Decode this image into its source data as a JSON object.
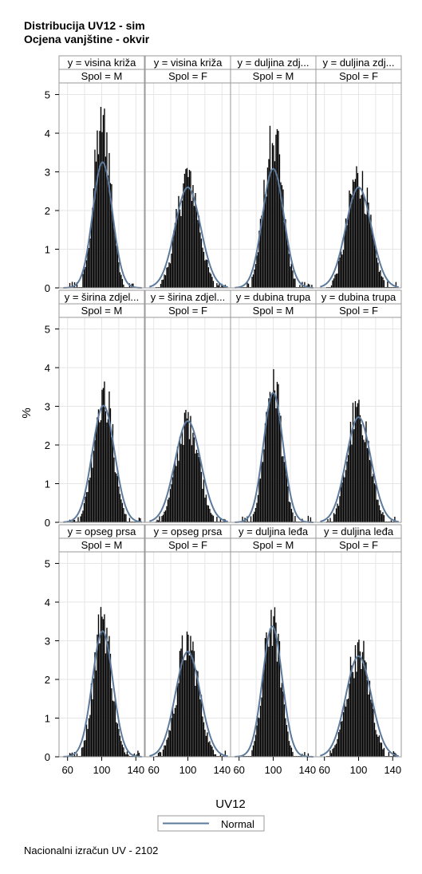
{
  "chart_data": {
    "type": "histogram-panel",
    "title": "Distribucija UV12 - sim",
    "subtitle": "Ocjena vanjštine - okvir",
    "footnote": "Nacionalni izračun UV - 2102",
    "xlabel": "UV12",
    "ylabel": "%",
    "xlim": [
      50,
      150
    ],
    "ylim": [
      0,
      5.3
    ],
    "x_ticks": [
      "60",
      "100",
      "140"
    ],
    "y_ticks": [
      "0",
      "1",
      "2",
      "3",
      "4",
      "5"
    ],
    "grid": true,
    "legend": {
      "position": "bottom",
      "entries": [
        "Normal"
      ]
    },
    "colors": {
      "bars": "#000000",
      "normal_curve": "#5b7a9c",
      "grid": "#e6e6e6",
      "header_bg": "#ffffff",
      "frame": "#9a9a9a"
    },
    "panels": [
      {
        "y": "y = visina križa",
        "spol": "Spol = M",
        "mean": 101,
        "sd": 11.5,
        "peak": 3.25,
        "hist_peak": 4.75
      },
      {
        "y": "y = visina križa",
        "spol": "Spol = F",
        "mean": 100,
        "sd": 15,
        "peak": 2.6,
        "hist_peak": 3.1
      },
      {
        "y": "y = duljina zdj...",
        "spol": "Spol = M",
        "mean": 100,
        "sd": 12.5,
        "peak": 3.08,
        "hist_peak": 4.2
      },
      {
        "y": "y = duljina zdj...",
        "spol": "Spol = F",
        "mean": 100,
        "sd": 15,
        "peak": 2.6,
        "hist_peak": 3.15
      },
      {
        "y": "y = širina zdjel...",
        "spol": "Spol = M",
        "mean": 102,
        "sd": 13,
        "peak": 3.02,
        "hist_peak": 3.7
      },
      {
        "y": "y = širina zdjel...",
        "spol": "Spol = F",
        "mean": 100,
        "sd": 15,
        "peak": 2.62,
        "hist_peak": 2.95
      },
      {
        "y": "y = dubina trupa",
        "spol": "Spol = M",
        "mean": 100,
        "sd": 11.5,
        "peak": 3.35,
        "hist_peak": 4.05
      },
      {
        "y": "y = dubina trupa",
        "spol": "Spol = F",
        "mean": 100,
        "sd": 14.5,
        "peak": 2.72,
        "hist_peak": 3.2
      },
      {
        "y": "y = opseg prsa",
        "spol": "Spol = M",
        "mean": 101,
        "sd": 12,
        "peak": 3.25,
        "hist_peak": 3.9
      },
      {
        "y": "y = opseg prsa",
        "spol": "Spol = F",
        "mean": 100,
        "sd": 14.5,
        "peak": 2.72,
        "hist_peak": 3.25
      },
      {
        "y": "y = duljina leđa",
        "spol": "Spol = M",
        "mean": 99,
        "sd": 11.5,
        "peak": 3.37,
        "hist_peak": 3.88
      },
      {
        "y": "y = duljina leđa",
        "spol": "Spol = F",
        "mean": 100,
        "sd": 15,
        "peak": 2.6,
        "hist_peak": 3.05
      }
    ]
  }
}
